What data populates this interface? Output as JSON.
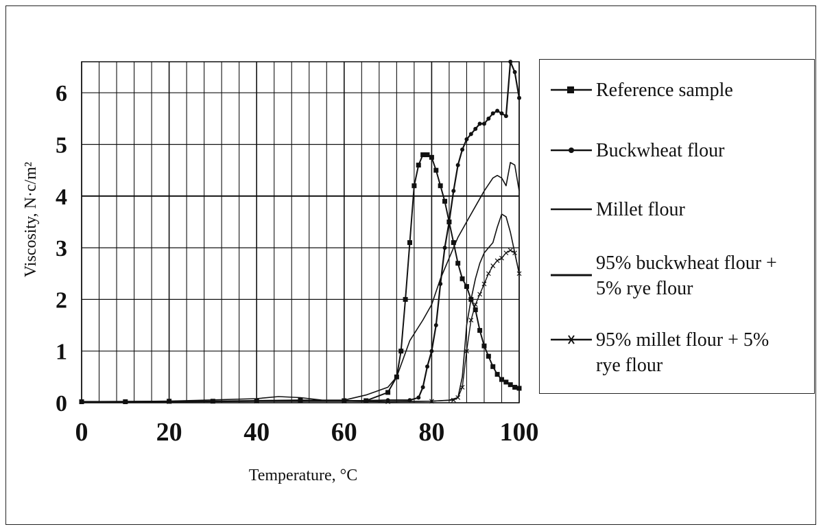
{
  "chart_data": {
    "type": "line",
    "xlabel": "Temperature, °C",
    "ylabel": "Viscosity, N·c/m²",
    "xlim": [
      0,
      100
    ],
    "ylim": [
      0,
      6.6
    ],
    "x_ticks": [
      "0",
      "20",
      "40",
      "60",
      "80",
      "100"
    ],
    "y_ticks": [
      "0",
      "1",
      "2",
      "3",
      "4",
      "5",
      "6"
    ],
    "grid": true,
    "legend_position": "right",
    "series": [
      {
        "name": "Reference sample",
        "marker": "square",
        "x": [
          0,
          10,
          20,
          30,
          40,
          50,
          60,
          65,
          70,
          72,
          73,
          74,
          75,
          76,
          77,
          78,
          79,
          80,
          81,
          82,
          83,
          84,
          85,
          86,
          87,
          88,
          89,
          90,
          91,
          92,
          93,
          94,
          95,
          96,
          97,
          98,
          99,
          100
        ],
        "y": [
          0.02,
          0.02,
          0.03,
          0.03,
          0.04,
          0.05,
          0.04,
          0.04,
          0.2,
          0.5,
          1.0,
          2.0,
          3.1,
          4.2,
          4.6,
          4.8,
          4.8,
          4.75,
          4.5,
          4.2,
          3.9,
          3.5,
          3.1,
          2.7,
          2.4,
          2.25,
          2.0,
          1.8,
          1.4,
          1.1,
          0.9,
          0.7,
          0.55,
          0.45,
          0.4,
          0.35,
          0.3,
          0.28
        ]
      },
      {
        "name": "Buckwheat flour",
        "marker": "dot",
        "x": [
          0,
          20,
          40,
          60,
          70,
          75,
          77,
          78,
          79,
          80,
          81,
          82,
          83,
          84,
          85,
          86,
          87,
          88,
          89,
          90,
          91,
          92,
          93,
          94,
          95,
          96,
          97,
          98,
          99,
          100
        ],
        "y": [
          0.02,
          0.02,
          0.03,
          0.03,
          0.05,
          0.05,
          0.1,
          0.3,
          0.7,
          1.0,
          1.5,
          2.3,
          3.0,
          3.5,
          4.1,
          4.6,
          4.9,
          5.1,
          5.2,
          5.3,
          5.4,
          5.4,
          5.5,
          5.6,
          5.65,
          5.6,
          5.55,
          6.6,
          6.4,
          5.9
        ]
      },
      {
        "name": "Millet flour",
        "marker": "none",
        "x": [
          0,
          20,
          40,
          60,
          70,
          80,
          84,
          86,
          87,
          87.5,
          88,
          89,
          90,
          91,
          92,
          93,
          94,
          95,
          96,
          97,
          98,
          99,
          100
        ],
        "y": [
          0.02,
          0.02,
          0.03,
          0.03,
          0.02,
          0.03,
          0.05,
          0.1,
          0.5,
          1.0,
          1.5,
          2.0,
          2.4,
          2.7,
          2.9,
          3.0,
          3.1,
          3.4,
          3.65,
          3.6,
          3.3,
          2.9,
          2.5
        ]
      },
      {
        "name": "95% buckwheat  flour +\n5% rye flour",
        "marker": "none",
        "x": [
          0,
          20,
          40,
          45,
          50,
          55,
          60,
          65,
          70,
          72,
          75,
          78,
          80,
          82,
          84,
          86,
          88,
          90,
          92,
          94,
          95,
          96,
          97,
          98,
          99,
          100
        ],
        "y": [
          0.02,
          0.03,
          0.08,
          0.12,
          0.1,
          0.05,
          0.05,
          0.15,
          0.3,
          0.5,
          1.2,
          1.6,
          1.9,
          2.4,
          2.8,
          3.2,
          3.5,
          3.8,
          4.1,
          4.35,
          4.4,
          4.35,
          4.2,
          4.65,
          4.6,
          4.1
        ]
      },
      {
        "name": "95% millet flour + 5%\nrye flour",
        "marker": "cross",
        "x": [
          0,
          20,
          40,
          60,
          70,
          80,
          85,
          86,
          87,
          88,
          89,
          90,
          91,
          92,
          93,
          94,
          95,
          96,
          97,
          98,
          99,
          100
        ],
        "y": [
          0.02,
          0.02,
          0.03,
          0.03,
          0.02,
          0.03,
          0.05,
          0.1,
          0.3,
          1.0,
          1.6,
          1.9,
          2.1,
          2.3,
          2.5,
          2.65,
          2.75,
          2.8,
          2.9,
          2.95,
          2.9,
          2.5
        ]
      }
    ]
  }
}
